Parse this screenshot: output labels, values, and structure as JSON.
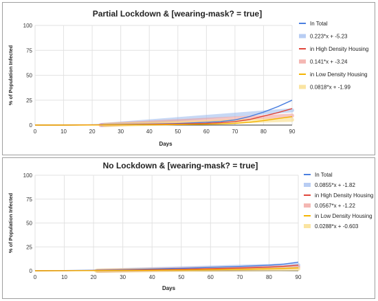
{
  "chart_data": [
    {
      "type": "line",
      "title": "Partial Lockdown & [wearing-mask? = true]",
      "xlabel": "Days",
      "ylabel": "% of Population Infected",
      "xlim": [
        0,
        90
      ],
      "ylim": [
        0,
        100
      ],
      "xticks": [
        0,
        10,
        20,
        30,
        40,
        50,
        60,
        70,
        80,
        90
      ],
      "yticks": [
        0,
        25,
        50,
        75,
        100
      ],
      "grid": true,
      "legend_position": "right",
      "series": [
        {
          "name": "In Total",
          "color": "#4a7fe0",
          "style": "line",
          "x": [
            0,
            10,
            20,
            30,
            40,
            50,
            60,
            65,
            70,
            75,
            80,
            85,
            90
          ],
          "y": [
            0,
            0,
            0.3,
            0.6,
            1,
            1.6,
            2.8,
            3.6,
            5.2,
            8.5,
            13,
            18.5,
            25
          ]
        },
        {
          "name": "0.223*x + -5.23",
          "color": "#9bb9ee",
          "style": "trendline",
          "slope": 0.223,
          "intercept": -5.23
        },
        {
          "name": "in High Density Housing",
          "color": "#e0453a",
          "style": "line",
          "x": [
            0,
            10,
            20,
            30,
            40,
            50,
            60,
            65,
            70,
            75,
            80,
            85,
            90
          ],
          "y": [
            0,
            0,
            0.2,
            0.4,
            0.7,
            1.1,
            1.8,
            2.5,
            3.5,
            5.5,
            9,
            12.5,
            16.5
          ]
        },
        {
          "name": "0.141*x + -3.24",
          "color": "#f09a94",
          "style": "trendline",
          "slope": 0.141,
          "intercept": -3.24
        },
        {
          "name": "in Low Density Housing",
          "color": "#f4b400",
          "style": "line",
          "x": [
            0,
            10,
            20,
            30,
            40,
            50,
            60,
            65,
            70,
            75,
            80,
            85,
            90
          ],
          "y": [
            0,
            0,
            0.1,
            0.2,
            0.3,
            0.5,
            0.9,
            1.2,
            1.7,
            2.8,
            4.5,
            6.5,
            8.5
          ]
        },
        {
          "name": "0.0818*x + -1.99",
          "color": "#f9d97a",
          "style": "trendline",
          "slope": 0.0818,
          "intercept": -1.99
        }
      ]
    },
    {
      "type": "line",
      "title": "No Lockdown & [wearing-mask? = true]",
      "xlabel": "Days",
      "ylabel": "% of Population Infected",
      "xlim": [
        0,
        90
      ],
      "ylim": [
        0,
        100
      ],
      "xticks": [
        0,
        10,
        20,
        30,
        40,
        50,
        60,
        70,
        80,
        90
      ],
      "yticks": [
        0,
        25,
        50,
        75,
        100
      ],
      "grid": true,
      "legend_position": "right",
      "series": [
        {
          "name": "In Total",
          "color": "#4a7fe0",
          "style": "line",
          "x": [
            0,
            10,
            20,
            30,
            40,
            50,
            60,
            70,
            80,
            85,
            90
          ],
          "y": [
            0,
            0.2,
            0.5,
            1,
            1.8,
            2.6,
            3.5,
            4.5,
            5.8,
            7,
            9
          ]
        },
        {
          "name": "0.0855*x + -1.82",
          "color": "#9bb9ee",
          "style": "trendline",
          "slope": 0.0855,
          "intercept": -1.82
        },
        {
          "name": "in High Density Housing",
          "color": "#e0453a",
          "style": "line",
          "x": [
            0,
            10,
            20,
            30,
            40,
            50,
            60,
            70,
            80,
            85,
            90
          ],
          "y": [
            0,
            0.1,
            0.3,
            0.6,
            1.1,
            1.6,
            2.2,
            2.9,
            3.8,
            4.6,
            6
          ]
        },
        {
          "name": "0.0567*x + -1.22",
          "color": "#f09a94",
          "style": "trendline",
          "slope": 0.0567,
          "intercept": -1.22
        },
        {
          "name": "in Low Density Housing",
          "color": "#f4b400",
          "style": "line",
          "x": [
            0,
            10,
            20,
            30,
            40,
            50,
            60,
            70,
            80,
            85,
            90
          ],
          "y": [
            0,
            0.05,
            0.15,
            0.3,
            0.5,
            0.8,
            1.1,
            1.5,
            2,
            2.4,
            3
          ]
        },
        {
          "name": "0.0288*x + -0.603",
          "color": "#f9d97a",
          "style": "trendline",
          "slope": 0.0288,
          "intercept": -0.603
        }
      ]
    }
  ]
}
